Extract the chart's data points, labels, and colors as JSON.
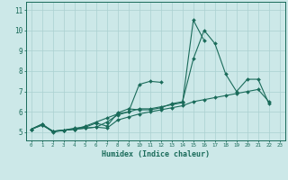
{
  "title": "",
  "xlabel": "Humidex (Indice chaleur)",
  "bg_color": "#cce8e8",
  "line_color": "#1a6b5a",
  "grid_color": "#aad0d0",
  "xlim": [
    -0.5,
    23.5
  ],
  "ylim": [
    4.6,
    11.4
  ],
  "xticks": [
    0,
    1,
    2,
    3,
    4,
    5,
    6,
    7,
    8,
    9,
    10,
    11,
    12,
    13,
    14,
    15,
    16,
    17,
    18,
    19,
    20,
    21,
    22,
    23
  ],
  "yticks": [
    5,
    6,
    7,
    8,
    9,
    10,
    11
  ],
  "series": [
    {
      "x": [
        0,
        1,
        2,
        3,
        4,
        5,
        6,
        7,
        8,
        9,
        10,
        11,
        12,
        13,
        14,
        15,
        16,
        17,
        18,
        19,
        20,
        21,
        22
      ],
      "y": [
        5.15,
        5.4,
        5.0,
        5.1,
        5.2,
        5.25,
        5.45,
        5.3,
        5.95,
        6.15,
        6.1,
        6.1,
        6.2,
        6.4,
        6.5,
        8.6,
        10.0,
        9.35,
        7.85,
        7.0,
        7.6,
        7.6,
        6.4
      ]
    },
    {
      "x": [
        0,
        1,
        2,
        3,
        4,
        5,
        6,
        7,
        8,
        9,
        10,
        11,
        12,
        13,
        14,
        15,
        16
      ],
      "y": [
        5.15,
        5.4,
        5.05,
        5.1,
        5.15,
        5.3,
        5.5,
        5.7,
        5.9,
        6.0,
        6.15,
        6.15,
        6.25,
        6.35,
        6.45,
        10.5,
        9.5
      ]
    },
    {
      "x": [
        0,
        1,
        2,
        3,
        4,
        5,
        6,
        7,
        8,
        9,
        10,
        11,
        12
      ],
      "y": [
        5.15,
        5.35,
        5.05,
        5.1,
        5.15,
        5.2,
        5.25,
        5.5,
        5.85,
        6.0,
        7.35,
        7.5,
        7.45
      ]
    },
    {
      "x": [
        0,
        1,
        2,
        3,
        4,
        5,
        6,
        7,
        8,
        9,
        10,
        11,
        12,
        13,
        14,
        15,
        16,
        17,
        18,
        19,
        20,
        21,
        22
      ],
      "y": [
        5.15,
        5.35,
        5.05,
        5.1,
        5.15,
        5.2,
        5.25,
        5.2,
        5.6,
        5.75,
        5.9,
        6.0,
        6.1,
        6.2,
        6.3,
        6.5,
        6.6,
        6.7,
        6.8,
        6.9,
        7.0,
        7.1,
        6.5
      ]
    }
  ]
}
